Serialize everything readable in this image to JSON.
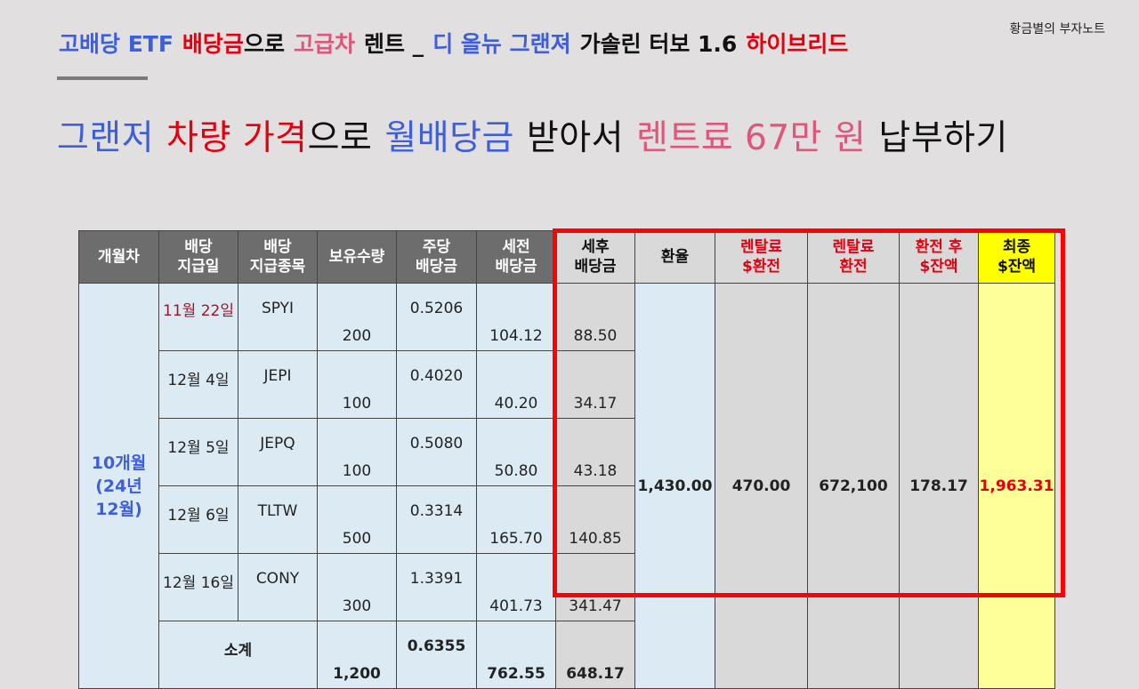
{
  "watermark": "황금별의 부자노트",
  "title": {
    "part1": "고배당 ETF",
    "part2": "배당금",
    "part3": "으로",
    "part4": "고급차",
    "part5": "렌트 _",
    "part6": "디 올뉴 그랜져",
    "part7": "가솔린 터보 1.6",
    "part8": "하이브리드"
  },
  "subtitle": {
    "part1": "그랜저",
    "part2": "차량 가격",
    "part3": "으로",
    "part4": "월배당금",
    "part5": "받아서",
    "part6": "렌트료 67만 원",
    "part7": "납부하기"
  },
  "table": {
    "headers": {
      "month": "개월차",
      "pay_date": "배당\n지급일",
      "ticker": "배당\n지급종목",
      "qty": "보유수량",
      "per_share": "주당\n배당금",
      "pre_tax": "세전\n배당금",
      "after_tax": "세후\n배당금",
      "fx": "환율",
      "rent_usd": "렌탈료\n$환전",
      "rent_krw": "렌탈료\n환전",
      "remain_usd": "환전 후\n$잔액",
      "final": "최종\n$잔액"
    },
    "month_label": "10개월\n(24년\n12월)",
    "rows": [
      {
        "date": "11월 22일",
        "ticker": "SPYI",
        "qty": "200",
        "per_share": "0.5206",
        "pre_tax": "104.12",
        "after_tax": "88.50"
      },
      {
        "date": "12월 4일",
        "ticker": "JEPI",
        "qty": "100",
        "per_share": "0.4020",
        "pre_tax": "40.20",
        "after_tax": "34.17"
      },
      {
        "date": "12월 5일",
        "ticker": "JEPQ",
        "qty": "100",
        "per_share": "0.5080",
        "pre_tax": "50.80",
        "after_tax": "43.18"
      },
      {
        "date": "12월 6일",
        "ticker": "TLTW",
        "qty": "500",
        "per_share": "0.3314",
        "pre_tax": "165.70",
        "after_tax": "140.85"
      },
      {
        "date": "12월 16일",
        "ticker": "CONY",
        "qty": "300",
        "per_share": "1.3391",
        "pre_tax": "401.73",
        "after_tax": "341.47"
      }
    ],
    "subtotal": {
      "label": "소계",
      "qty": "1,200",
      "per_share": "0.6355",
      "pre_tax": "762.55",
      "after_tax": "648.17"
    },
    "fx_rate": "1,430.00",
    "rent_usd": "470.00",
    "rent_krw": "672,100",
    "remain_usd": "178.17",
    "final_usd": "1,963.31"
  },
  "colors": {
    "background": "#e1dfdf",
    "header_grey": "#6d6d6d",
    "light_blue": "#dcebf3",
    "highlight_red": "#ff0000",
    "final_yellow": "#ffff00"
  }
}
